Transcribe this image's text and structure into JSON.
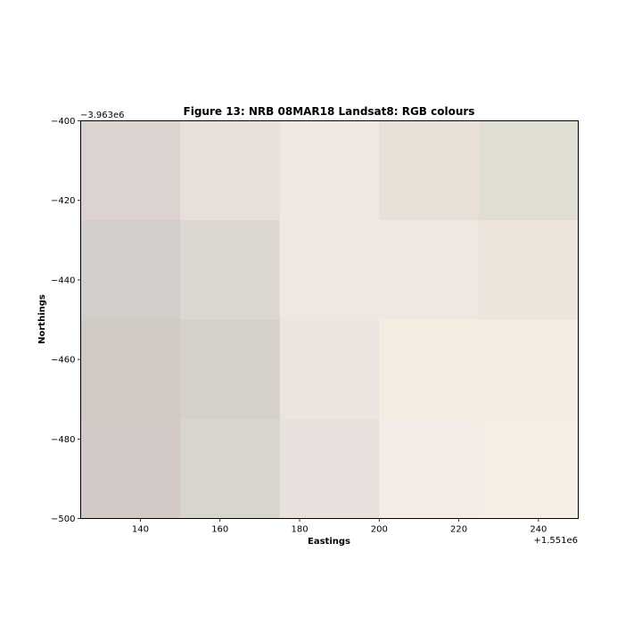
{
  "chart_data": {
    "type": "heatmap",
    "title": "Figure 13: NRB 08MAR18  Landsat8: RGB colours",
    "xlabel": "Eastings",
    "ylabel": "Northings",
    "x_offset_label": "+1.551e6",
    "y_offset_label": "−3.963e6",
    "xlim": [
      125,
      250
    ],
    "ylim": [
      -500,
      -400
    ],
    "x_ticks": [
      140,
      160,
      180,
      200,
      220,
      240
    ],
    "y_ticks": [
      -400,
      -420,
      -440,
      -460,
      -480,
      -500
    ],
    "x_tick_labels": [
      "140",
      "160",
      "180",
      "200",
      "220",
      "240"
    ],
    "y_tick_labels": [
      "−400",
      "−420",
      "−440",
      "−460",
      "−480",
      "−500"
    ],
    "grid": false,
    "pixel_size": 25,
    "cell_x_edges": [
      125,
      150,
      175,
      200,
      225,
      250
    ],
    "cell_y_edges": [
      -400,
      -425,
      -450,
      -475,
      -500
    ],
    "cell_colors": [
      [
        "#dcd3d1",
        "#e8dfda",
        "#f0e7e2",
        "#e8e0d6",
        "#e0ddd3"
      ],
      [
        "#d2cecb",
        "#dcd8d1",
        "#f0e7e2",
        "#f0e7e2",
        "#ede5dc"
      ],
      [
        "#d1c9c3",
        "#d5d0ca",
        "#ede4e0",
        "#f5ece2",
        "#f4ebe3"
      ],
      [
        "#d3c9c7",
        "#d8d4ce",
        "#e8e0dc",
        "#f4ece7",
        "#f6ede5"
      ]
    ]
  }
}
